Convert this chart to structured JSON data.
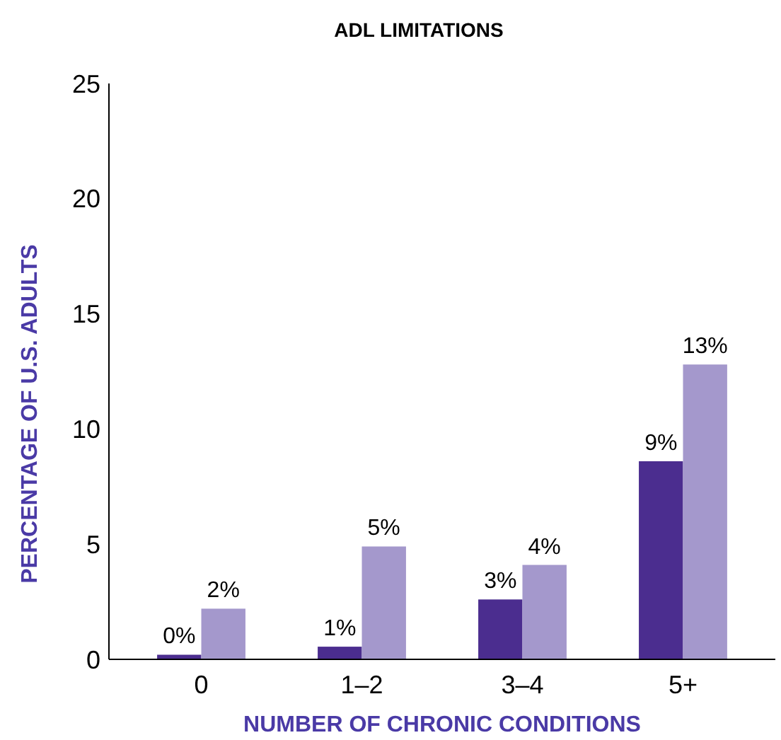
{
  "chart_data": {
    "type": "bar",
    "title": "ADL LIMITATIONS",
    "xlabel": "NUMBER OF CHRONIC CONDITIONS",
    "ylabel": "PERCENTAGE OF U.S. ADULTS",
    "categories": [
      "0",
      "1–2",
      "3–4",
      "5+"
    ],
    "ylim": [
      0,
      25
    ],
    "yticks": [
      0,
      5,
      10,
      15,
      20,
      25
    ],
    "grid": false,
    "series": [
      {
        "color": "#4b2d8f",
        "values": [
          0.2,
          0.55,
          2.6,
          8.6
        ],
        "value_labels": [
          "0%",
          "1%",
          "3%",
          "9%"
        ]
      },
      {
        "color": "#a498cc",
        "values": [
          2.2,
          4.9,
          4.1,
          12.8
        ],
        "value_labels": [
          "2%",
          "5%",
          "4%",
          "13%"
        ]
      }
    ]
  }
}
